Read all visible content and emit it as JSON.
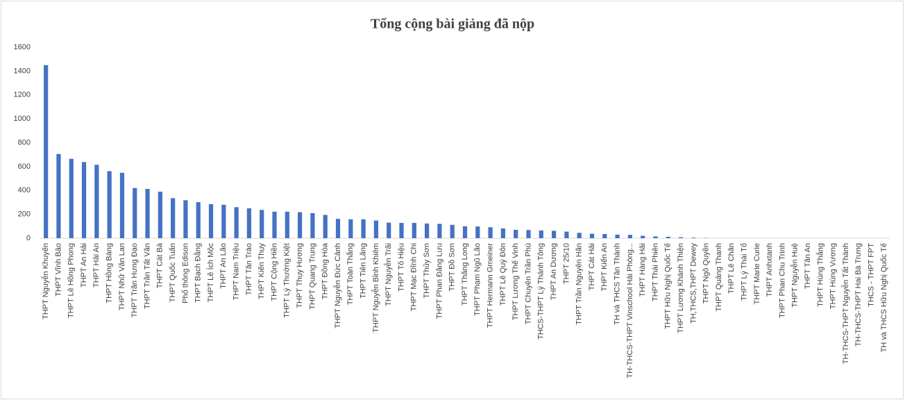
{
  "chart_data": {
    "type": "bar",
    "title": "Tổng cộng bài giảng đã nộp",
    "categories": [
      "THPT Nguyễn Khuyến",
      "THPT Vĩnh Bảo",
      "THPT Lê Hồng Phong",
      "THPT An Hải",
      "THPT Hải An",
      "THPT Hồng Bàng",
      "THPT Nhữ Văn Lan",
      "THPT Trần Hưng Đạo",
      "THPT Trần Tất Văn",
      "THPT Cát Bà",
      "THPT Quốc Tuấn",
      "Phổ thông Edison",
      "THPT Bạch Đằng",
      "THPT Lê Ích Mộc",
      "THPT An Lão",
      "THPT Nam Triệu",
      "THPT Tân Trào",
      "THPT Kiến Thụy",
      "THPT Cộng Hiền",
      "THPT Lý Thường Kiệt",
      "THPT Thụy Hương",
      "THPT Quang Trung",
      "THPT Đồng Hòa",
      "THPT Nguyễn Đức Cảnh",
      "THPT Toàn Thắng",
      "THPT Tiên Lãng",
      "THPT Nguyễn Bỉnh Khiêm",
      "THPT Nguyễn Trãi",
      "THPT Tô Hiệu",
      "THPT Mạc Đĩnh Chi",
      "THPT Thủy Sơn",
      "THPT Phan Đăng Lưu",
      "THPT Đồ Sơn",
      "THPT Thăng Long",
      "THPT Phạm Ngũ Lão",
      "THPT Hermann Gmeiner",
      "THPT Lê Quý Đôn",
      "THPT Lương Thế Vinh",
      "THPT Chuyên Trần Phú",
      "THCS-THPT Lý Thánh Tông",
      "THPT An Dương",
      "THPT 25/10",
      "THPT Trần Nguyên Hãn",
      "THPT Cát Hải",
      "THPT Kiến An",
      "TH và THCS Tân Thành",
      "TH-THCS-THPT Vinschool Hải Phòng...",
      "THPT Hàng Hải",
      "THPT Thái Phiên",
      "THPT Hữu Nghị Quốc Tế",
      "THPT Lương Khánh Thiện",
      "TH,THCS,THPT Dewey",
      "THPT Ngô Quyền",
      "THPT Quảng Thanh",
      "THPT Lê Chân",
      "THPT Lý Thái Tổ",
      "THPT Marie Curie",
      "THPT Anhxtanh",
      "THPT Phan Chu Trinh",
      "THPT Nguyễn Huệ",
      "THPT Tân An",
      "THPT Hùng Thắng",
      "THPT Hùng Vương",
      "TH-THCS-THPT Nguyễn Tất Thành",
      "TH-THCS-THPT Hai Bà Trưng",
      "THCS - THPT FPT",
      "TH và THCS Hữu Nghị Quốc Tế"
    ],
    "values": [
      1450,
      705,
      665,
      638,
      615,
      562,
      548,
      420,
      413,
      390,
      335,
      318,
      302,
      285,
      280,
      260,
      250,
      237,
      222,
      222,
      218,
      210,
      195,
      162,
      158,
      158,
      148,
      130,
      128,
      128,
      123,
      120,
      112,
      100,
      98,
      92,
      82,
      70,
      68,
      65,
      62,
      55,
      45,
      38,
      35,
      30,
      28,
      20,
      15,
      12,
      8,
      5,
      2,
      0,
      0,
      0,
      0,
      0,
      0,
      0,
      0,
      0,
      0,
      0,
      0,
      0,
      0
    ],
    "color": "#4472c4",
    "ylim": [
      0,
      1600
    ],
    "yticks": [
      0,
      200,
      400,
      600,
      800,
      1000,
      1200,
      1400,
      1600
    ],
    "grid": false
  }
}
